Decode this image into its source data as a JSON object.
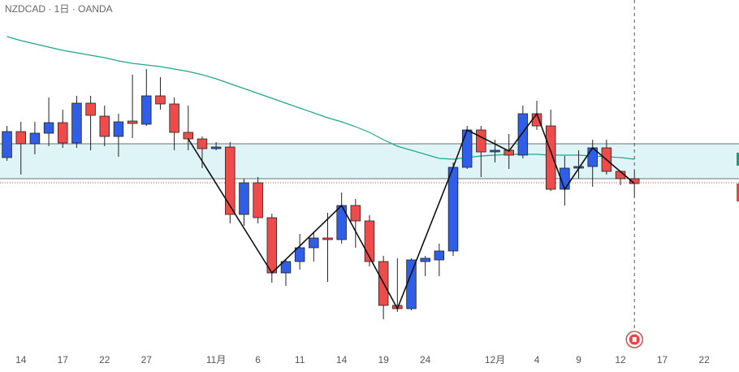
{
  "chart_data": {
    "type": "candlestick",
    "title": "NZDCAD · 1日 · OANDA",
    "up_color": "#2f5fe8",
    "down_color": "#f04b4b",
    "ylim": [
      0.797,
      0.84
    ],
    "xlim": [
      -0.5,
      52.5
    ],
    "xticks": [
      {
        "value": 1,
        "label": "14"
      },
      {
        "value": 4,
        "label": "17"
      },
      {
        "value": 7,
        "label": "22"
      },
      {
        "value": 10,
        "label": "27"
      },
      {
        "value": 15,
        "label": "11月"
      },
      {
        "value": 18,
        "label": "6"
      },
      {
        "value": 21,
        "label": "11"
      },
      {
        "value": 24,
        "label": "14"
      },
      {
        "value": 27,
        "label": "19"
      },
      {
        "value": 30,
        "label": "24"
      },
      {
        "value": 35,
        "label": "12月"
      },
      {
        "value": 38,
        "label": "4"
      },
      {
        "value": 41,
        "label": "9"
      },
      {
        "value": 44,
        "label": "12"
      },
      {
        "value": 47,
        "label": "17"
      },
      {
        "value": 50,
        "label": "22"
      }
    ],
    "open": [
      0.8206,
      0.8238,
      0.8223,
      0.8236,
      0.8249,
      0.8224,
      0.8273,
      0.8257,
      0.8232,
      0.8251,
      0.8247,
      0.8282,
      0.8272,
      0.8237,
      0.8229,
      0.8217,
      0.8219,
      0.8136,
      0.8175,
      0.8132,
      0.8064,
      0.8078,
      0.8095,
      0.8107,
      0.8105,
      0.8147,
      0.8128,
      0.8078,
      0.8024,
      0.802,
      0.8078,
      0.808,
      0.8091,
      0.8194,
      0.824,
      0.8213,
      0.8215,
      0.8209,
      0.826,
      0.8245,
      0.8167,
      0.8193,
      0.8195,
      0.8218,
      0.8189,
      0.818
    ],
    "high": [
      0.8245,
      0.825,
      0.825,
      0.828,
      0.8265,
      0.8282,
      0.8282,
      0.827,
      0.826,
      0.8308,
      0.8315,
      0.8305,
      0.828,
      0.827,
      0.8232,
      0.8225,
      0.8225,
      0.818,
      0.8182,
      0.8137,
      0.808,
      0.8112,
      0.8115,
      0.8138,
      0.8163,
      0.8155,
      0.8135,
      0.8085,
      0.8082,
      0.8082,
      0.8085,
      0.81,
      0.82,
      0.8245,
      0.8245,
      0.8228,
      0.8235,
      0.827,
      0.8276,
      0.8265,
      0.8208,
      0.8215,
      0.8228,
      0.8228,
      0.819,
      0.819
    ],
    "low": [
      0.8202,
      0.8185,
      0.821,
      0.822,
      0.8218,
      0.8218,
      0.8215,
      0.822,
      0.8207,
      0.823,
      0.8245,
      0.8265,
      0.8215,
      0.8215,
      0.8193,
      0.8215,
      0.8125,
      0.8122,
      0.8125,
      0.8052,
      0.8048,
      0.8068,
      0.8078,
      0.8053,
      0.81,
      0.8095,
      0.8072,
      0.8007,
      0.8016,
      0.8018,
      0.806,
      0.806,
      0.8085,
      0.8192,
      0.8182,
      0.82,
      0.8192,
      0.8205,
      0.824,
      0.8165,
      0.8147,
      0.818,
      0.817,
      0.8185,
      0.8172,
      0.8157
    ],
    "close": [
      0.8238,
      0.8223,
      0.8236,
      0.8249,
      0.8224,
      0.8273,
      0.8258,
      0.8232,
      0.825,
      0.8248,
      0.8282,
      0.8272,
      0.8237,
      0.8229,
      0.8217,
      0.8219,
      0.8136,
      0.8175,
      0.8132,
      0.8064,
      0.8078,
      0.8095,
      0.8107,
      0.8105,
      0.8147,
      0.8128,
      0.8078,
      0.8024,
      0.802,
      0.808,
      0.8082,
      0.8091,
      0.8194,
      0.824,
      0.8213,
      0.8215,
      0.8209,
      0.826,
      0.8245,
      0.8167,
      0.8193,
      0.8195,
      0.8218,
      0.8189,
      0.818,
      0.8174
    ],
    "moving_average": {
      "color": "#22a48f",
      "values": [
        0.8355,
        0.835,
        0.8346,
        0.8342,
        0.8338,
        0.8335,
        0.8332,
        0.8329,
        0.8325,
        0.8322,
        0.832,
        0.8318,
        0.8315,
        0.8312,
        0.8308,
        0.8303,
        0.8297,
        0.8291,
        0.8285,
        0.8279,
        0.8273,
        0.8267,
        0.8261,
        0.8255,
        0.825,
        0.8244,
        0.8237,
        0.8228,
        0.822,
        0.8215,
        0.821,
        0.8205,
        0.8204,
        0.8206,
        0.8208,
        0.8209,
        0.821,
        0.821,
        0.821,
        0.8209,
        0.8209,
        0.8209,
        0.8208,
        0.8207,
        0.8206,
        0.8204
      ]
    },
    "zigzag": {
      "color": "#111111",
      "x": [
        13,
        19,
        24,
        28,
        32,
        33,
        36,
        38,
        40,
        42,
        45
      ],
      "values": [
        0.8229,
        0.8064,
        0.8147,
        0.802,
        0.8194,
        0.824,
        0.8214,
        0.826,
        0.8167,
        0.8218,
        0.8174
      ]
    },
    "zone": {
      "upper": 0.8223,
      "lower": 0.818,
      "color": "#dff4f7"
    },
    "last_price": 0.8175
  }
}
